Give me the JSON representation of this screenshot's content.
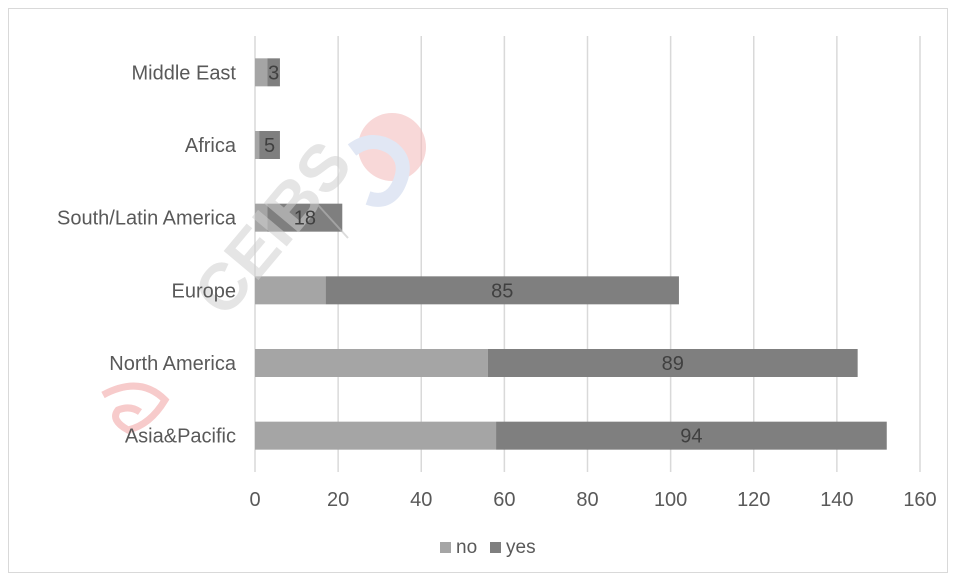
{
  "chart_data": {
    "type": "bar",
    "orientation": "horizontal",
    "stacked": true,
    "categories": [
      "Asia&Pacific",
      "North America",
      "Europe",
      "South/Latin America",
      "Africa",
      "Middle East"
    ],
    "series": [
      {
        "name": "no",
        "values": [
          58,
          56,
          17,
          3,
          1,
          3
        ],
        "color": "#a5a5a5"
      },
      {
        "name": "yes",
        "values": [
          94,
          89,
          85,
          18,
          5,
          3
        ],
        "color": "#7f7f7f"
      }
    ],
    "data_labels_series": "yes",
    "xlim": [
      0,
      160
    ],
    "xticks": [
      0,
      20,
      40,
      60,
      80,
      100,
      120,
      140,
      160
    ],
    "grid": true,
    "legend_position": "bottom",
    "watermark": "CEIBS"
  }
}
